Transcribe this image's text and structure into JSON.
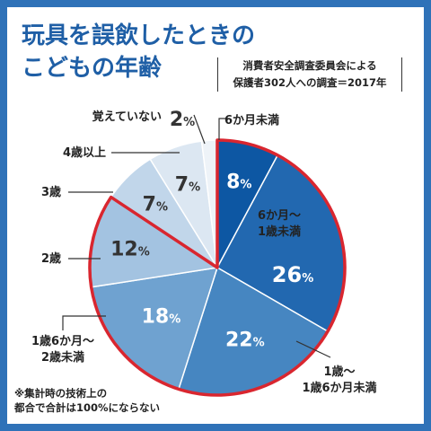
{
  "title_line1": "玩具を誤飲したときの",
  "title_line2": "こどもの年齢",
  "source_line1": "消費者安全調査委員会による",
  "source_line2": "保護者302人への調査＝2017年",
  "note_line1": "※集計時の技術上の",
  "note_line2": "都合で合計は100%にならない",
  "colors": {
    "background": "#2f72b8",
    "title": "#1f5fa6",
    "highlight_outline": "#d9262f"
  },
  "chart_data": {
    "type": "pie",
    "unit": "%",
    "slices": [
      {
        "label": "6か月未満",
        "value": 8,
        "color": "#0d57a3",
        "text_color": "#ffffff"
      },
      {
        "label": "6か月〜\n1歳未満",
        "value": 26,
        "color": "#2268b0",
        "text_color": "#ffffff"
      },
      {
        "label": "1歳〜\n1歳6か月未満",
        "value": 22,
        "color": "#4686c1",
        "text_color": "#ffffff"
      },
      {
        "label": "1歳6か月〜\n2歳未満",
        "value": 18,
        "color": "#6fa2d0",
        "text_color": "#ffffff"
      },
      {
        "label": "2歳",
        "value": 12,
        "color": "#a3c3e1",
        "text_color": "#333333"
      },
      {
        "label": "3歳",
        "value": 7,
        "color": "#c1d6ea",
        "text_color": "#333333"
      },
      {
        "label": "4歳以上",
        "value": 7,
        "color": "#dce7f2",
        "text_color": "#333333"
      },
      {
        "label": "覚えていない",
        "value": 2,
        "color": "#eef3f8",
        "text_color": "#333333"
      }
    ],
    "highlight": "0–2歳 (6か月未満〜2歳)"
  }
}
